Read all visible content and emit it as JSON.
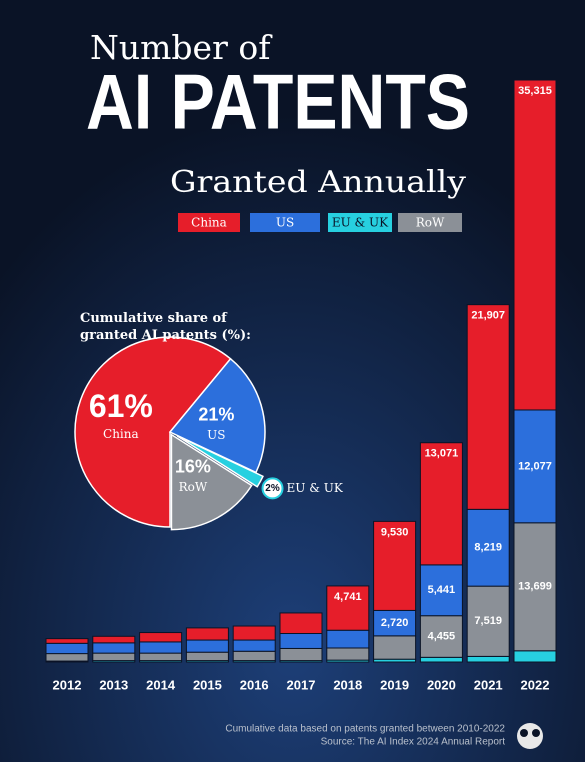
{
  "chart_data": [
    {
      "type": "bar",
      "title_lines": [
        "Number of",
        "AI PATENTS",
        "Granted Annually"
      ],
      "stacked": true,
      "categories": [
        "2012",
        "2013",
        "2014",
        "2015",
        "2016",
        "2017",
        "2018",
        "2019",
        "2020",
        "2021",
        "2022"
      ],
      "series": [
        {
          "name": "China",
          "color": "#e61e2a",
          "values": [
            500,
            700,
            1000,
            1300,
            1500,
            2200,
            4741,
            9530,
            13071,
            21907,
            35315
          ],
          "value_labels": [
            null,
            null,
            null,
            null,
            null,
            null,
            "4,741",
            "9,530",
            "13,071",
            "21,907",
            "35,315"
          ]
        },
        {
          "name": "US",
          "color": "#2c6fdc",
          "values": [
            1100,
            1100,
            1200,
            1300,
            1200,
            1600,
            1900,
            2720,
            5441,
            8219,
            12077
          ],
          "value_labels": [
            null,
            null,
            null,
            null,
            null,
            null,
            null,
            "2,720",
            "5,441",
            "8,219",
            "12,077"
          ]
        },
        {
          "name": "EU & UK",
          "color": "#27d0e0",
          "values": [
            100,
            150,
            150,
            150,
            150,
            150,
            200,
            300,
            500,
            600,
            1200
          ]
        },
        {
          "name": "RoW",
          "color": "#8b9097",
          "values": [
            800,
            800,
            800,
            900,
            1000,
            1300,
            1300,
            2500,
            4455,
            7519,
            13699
          ],
          "value_labels": [
            null,
            null,
            null,
            null,
            null,
            null,
            null,
            null,
            "4,455",
            "7,519",
            "13,699"
          ]
        }
      ],
      "legend": "top",
      "footnotes": [
        "Cumulative data based on patents granted between 2010-2022",
        "Source: The AI Index 2024 Annual Report"
      ]
    },
    {
      "type": "pie",
      "title": "Cumulative share of granted AI patents (%):",
      "categories": [
        "China",
        "US",
        "EU & UK",
        "RoW"
      ],
      "values": [
        61,
        21,
        2,
        16
      ],
      "value_labels": [
        "61%",
        "21%",
        "2%",
        "16%"
      ],
      "colors": [
        "#e61e2a",
        "#2c6fdc",
        "#27d0e0",
        "#8b9097"
      ]
    }
  ]
}
